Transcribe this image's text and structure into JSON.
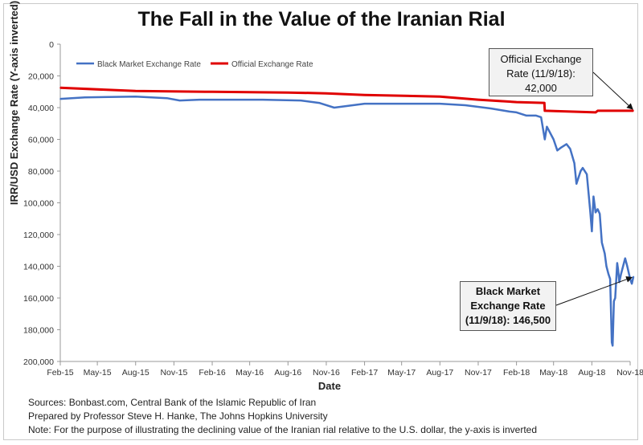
{
  "title": "The Fall in the Value of the Iranian Rial",
  "callouts": {
    "official": [
      "Official Exchange",
      "Rate (11/9/18):",
      "42,000"
    ],
    "black": [
      "Black Market",
      "Exchange Rate",
      "(11/9/18): 146,500"
    ]
  },
  "footer": [
    "Sources: Bonbast.com, Central Bank of the Islamic Republic of Iran",
    "Prepared by Professor Steve H. Hanke, The Johns Hopkins University",
    "Note: For the purpose of illustrating the declining value of the Iranian rial relative to the U.S. dollar, the y-axis is inverted"
  ],
  "colors": {
    "black_market": "#4472C4",
    "official": "#E00000",
    "axis": "#999999"
  },
  "chart_data": {
    "type": "line",
    "title": "The Fall in the Value of the Iranian Rial",
    "xlabel": "Date",
    "ylabel": "IRR/USD Exchange Rate (Y-axis inverted)",
    "y_inverted": true,
    "ylim": [
      0,
      200000
    ],
    "yticks": [
      0,
      20000,
      40000,
      60000,
      80000,
      100000,
      120000,
      140000,
      160000,
      180000,
      200000
    ],
    "ytick_labels": [
      "0",
      "20,000",
      "40,000",
      "60,000",
      "80,000",
      "100,000",
      "120,000",
      "140,000",
      "160,000",
      "180,000",
      "200,000"
    ],
    "xticks": [
      "Feb-15",
      "May-15",
      "Aug-15",
      "Nov-15",
      "Feb-16",
      "May-16",
      "Aug-16",
      "Nov-16",
      "Feb-17",
      "May-17",
      "Aug-17",
      "Nov-17",
      "Feb-18",
      "May-18",
      "Aug-18",
      "Nov-18"
    ],
    "legend_position": "top-left",
    "series": [
      {
        "name": "Black Market Exchange Rate",
        "color": "#4472C4",
        "x": [
          "2015-02-01",
          "2015-04-01",
          "2015-08-01",
          "2015-10-15",
          "2015-11-15",
          "2016-01-01",
          "2016-03-01",
          "2016-06-01",
          "2016-09-01",
          "2016-10-15",
          "2016-11-20",
          "2016-12-20",
          "2017-02-01",
          "2017-05-01",
          "2017-08-01",
          "2017-10-01",
          "2017-12-01",
          "2018-01-15",
          "2018-02-01",
          "2018-02-25",
          "2018-03-20",
          "2018-04-01",
          "2018-04-10",
          "2018-04-15",
          "2018-05-01",
          "2018-05-10",
          "2018-05-20",
          "2018-06-01",
          "2018-06-10",
          "2018-06-20",
          "2018-06-25",
          "2018-07-05",
          "2018-07-10",
          "2018-07-20",
          "2018-07-28",
          "2018-08-01",
          "2018-08-05",
          "2018-08-10",
          "2018-08-15",
          "2018-08-20",
          "2018-08-25",
          "2018-09-01",
          "2018-09-05",
          "2018-09-10",
          "2018-09-14",
          "2018-09-18",
          "2018-09-20",
          "2018-09-23",
          "2018-09-26",
          "2018-10-01",
          "2018-10-03",
          "2018-10-06",
          "2018-10-10",
          "2018-10-15",
          "2018-10-20",
          "2018-10-25",
          "2018-11-01",
          "2018-11-05",
          "2018-11-09"
        ],
        "values": [
          34500,
          33500,
          33000,
          34000,
          35500,
          35000,
          35000,
          35000,
          35500,
          37000,
          40000,
          39000,
          37500,
          37500,
          37500,
          38500,
          40500,
          42500,
          43000,
          45000,
          45000,
          46000,
          60000,
          52000,
          60000,
          67000,
          65000,
          63000,
          66000,
          75000,
          88000,
          80000,
          78000,
          82000,
          105000,
          118000,
          96000,
          106000,
          104000,
          107000,
          125000,
          132000,
          140000,
          145000,
          148000,
          188000,
          190000,
          162000,
          160000,
          138000,
          142000,
          150000,
          145000,
          140000,
          135000,
          140000,
          148000,
          151000,
          146500
        ]
      },
      {
        "name": "Official Exchange Rate",
        "color": "#E00000",
        "x": [
          "2015-02-01",
          "2015-08-01",
          "2016-02-01",
          "2016-08-01",
          "2016-11-01",
          "2017-02-01",
          "2017-08-01",
          "2017-11-01",
          "2018-02-01",
          "2018-04-09",
          "2018-04-10",
          "2018-08-10",
          "2018-08-15",
          "2018-11-09"
        ],
        "values": [
          27500,
          29500,
          30000,
          30500,
          31000,
          32000,
          33000,
          35000,
          36500,
          37000,
          42000,
          43000,
          42000,
          42000
        ]
      }
    ]
  }
}
